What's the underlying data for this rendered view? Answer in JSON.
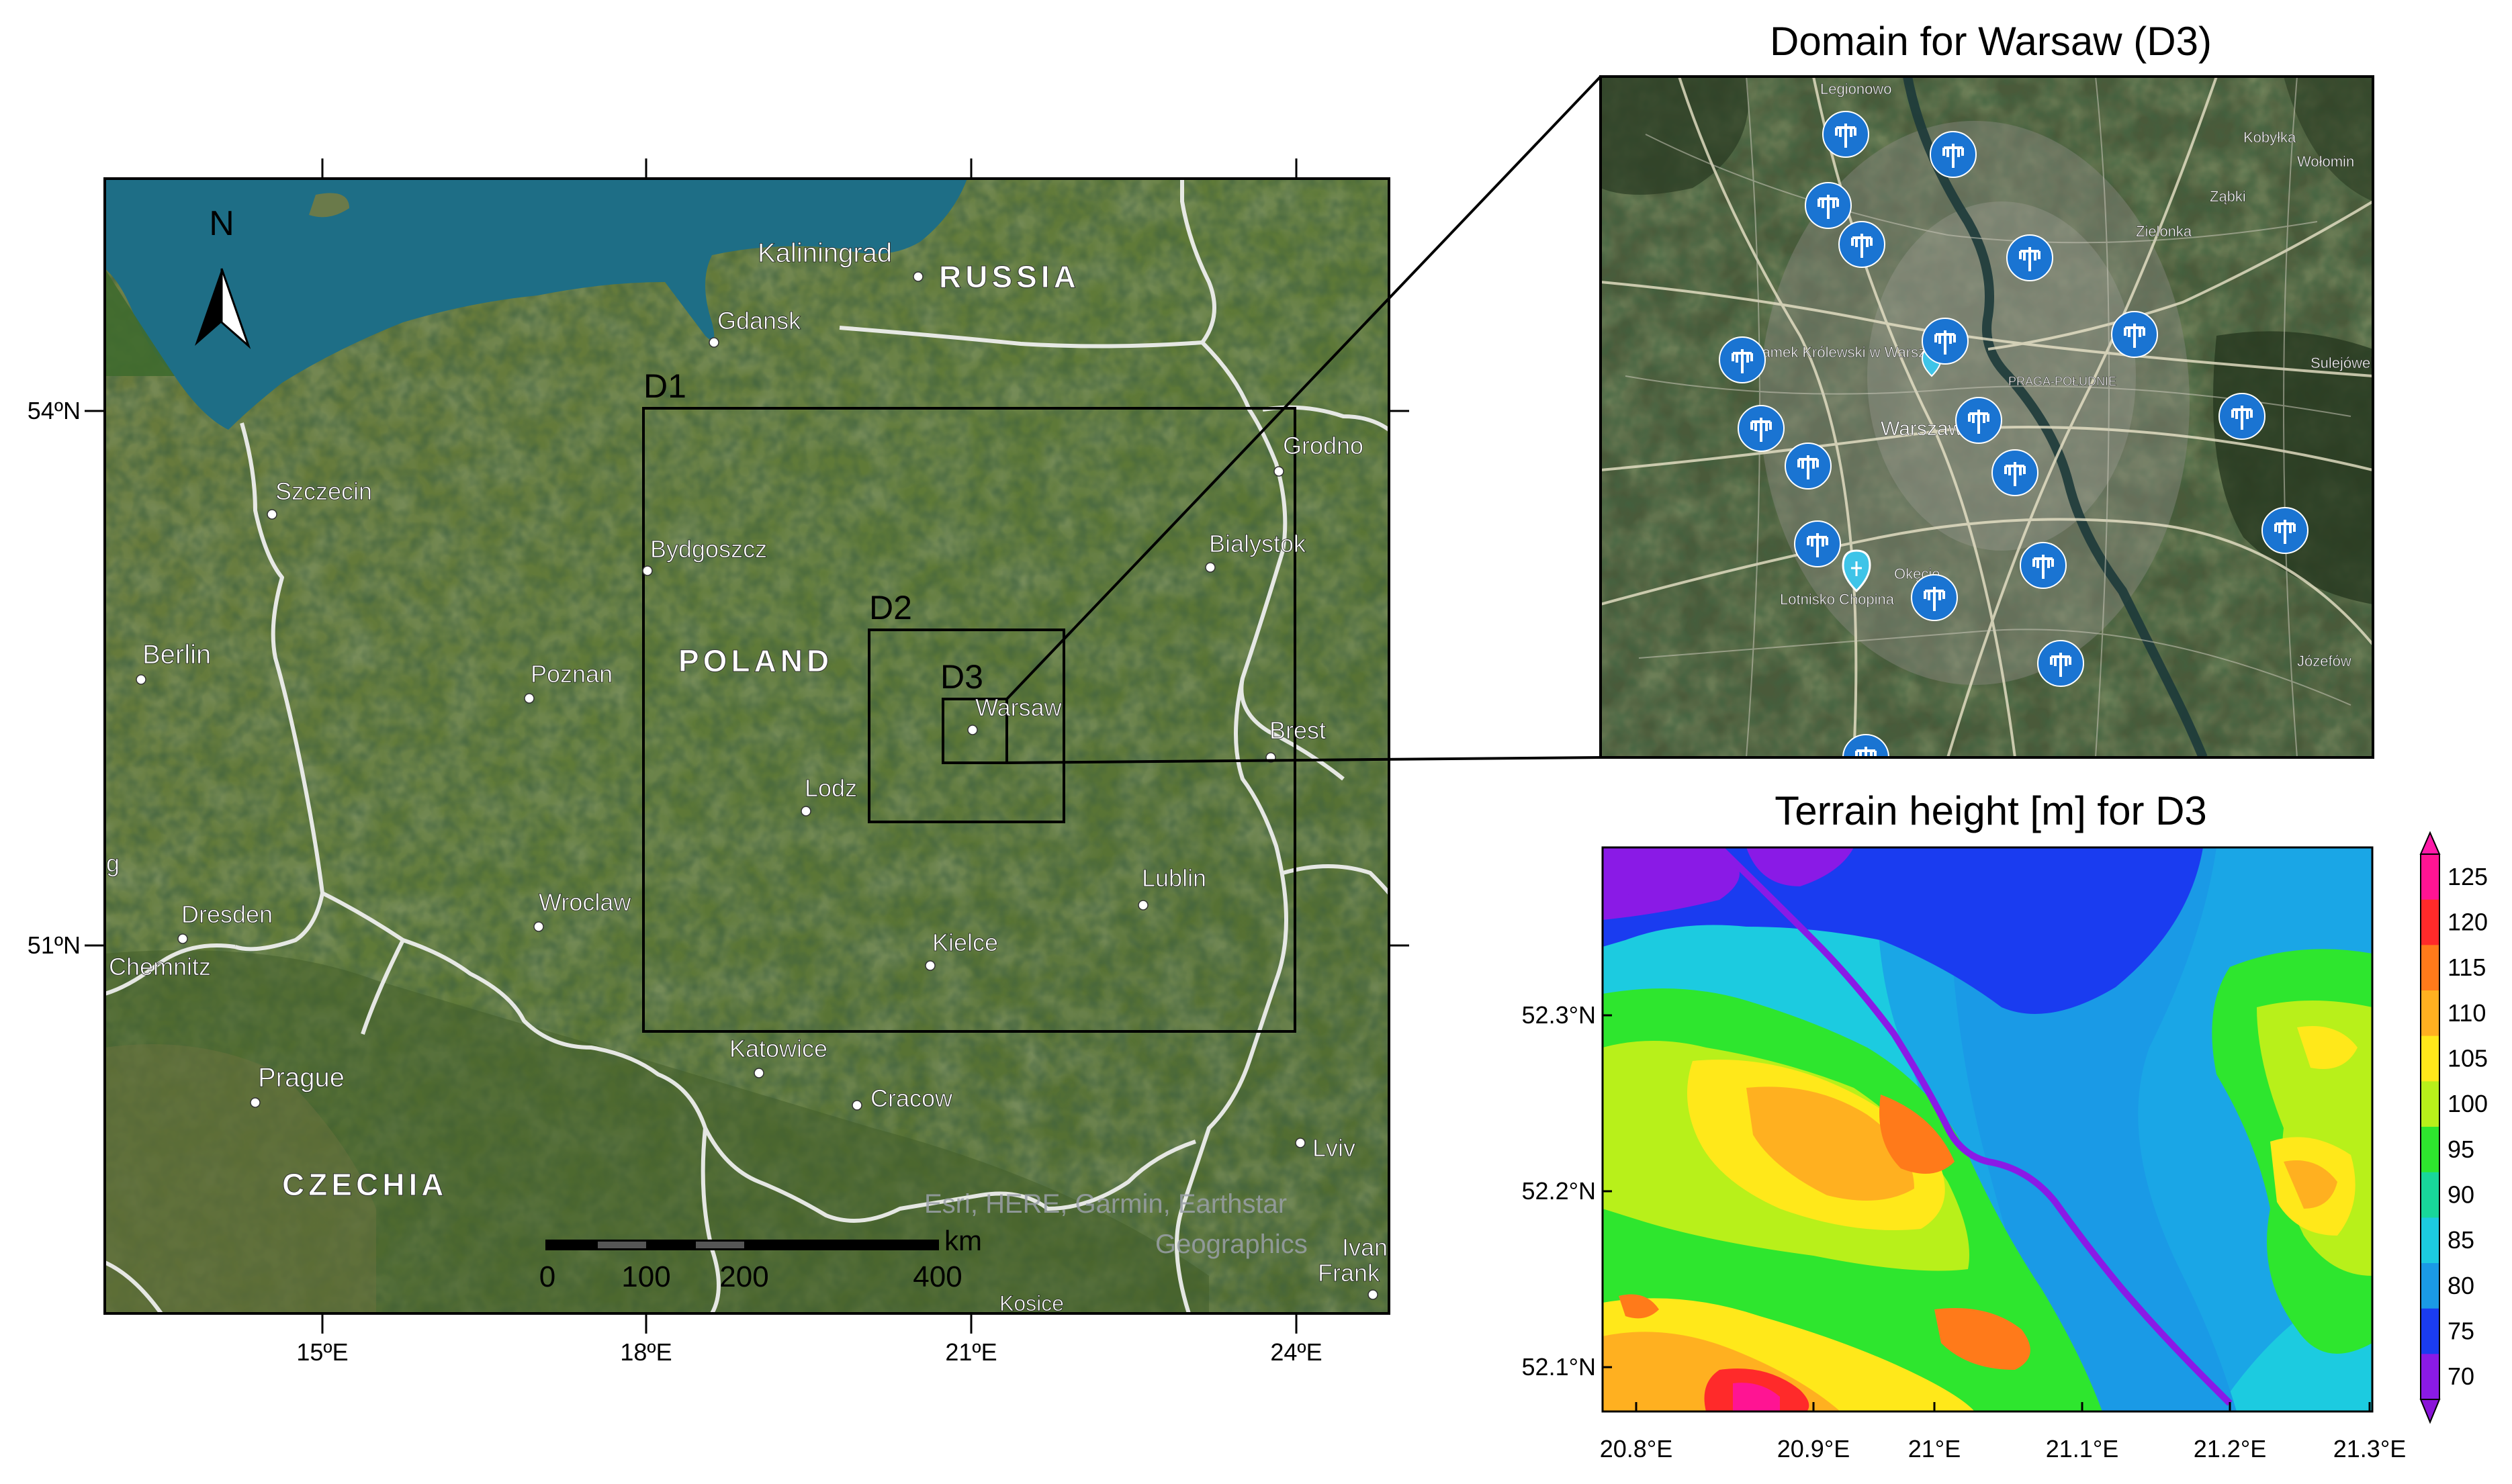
{
  "left_map": {
    "north_label": "N",
    "lat_labels": [
      "54ºN",
      "51ºN"
    ],
    "lon_labels": [
      "15ºE",
      "18ºE",
      "21ºE",
      "24ºE"
    ],
    "countries": [
      "RUSSIA",
      "POLAND",
      "CZECHIA"
    ],
    "cities": [
      "Kaliningrad",
      "Gdansk",
      "Szczecin",
      "Bydgoszcz",
      "Berlin",
      "Poznan",
      "Bialystok",
      "Grodno",
      "Brest",
      "Warsaw",
      "Lodz",
      "Lublin",
      "Wroclaw",
      "Dresden",
      "Chemnitz",
      "Kielce",
      "Katowice",
      "Cracow",
      "Prague",
      "Lviv",
      "Ivan",
      "Frank",
      "Kosice",
      "g"
    ],
    "domains": [
      "D1",
      "D2",
      "D3"
    ],
    "attribution": [
      "Esri, HERE, Garmin, Earthstar",
      "Geographics"
    ],
    "scale_bar": {
      "unit": "km",
      "ticks": [
        "0",
        "100",
        "200",
        "400"
      ]
    }
  },
  "top_right": {
    "title": "Domain for Warsaw (D3)",
    "labels": [
      "Zamek Królewski w Warszawie",
      "Warszawa",
      "PRAGA-POŁUDNIE",
      "Lotnisko Chopina",
      "Legionowo",
      "Zielonka",
      "Józefów",
      "Kobyłka",
      "Wołomin",
      "Sulejówek",
      "Ząbki",
      "Okęcie"
    ],
    "marker_icon": "weather-station-icon",
    "marker_count": 19
  },
  "bottom_right": {
    "title": "Terrain height [m] for D3",
    "lat_labels": [
      "52.3°N",
      "52.2°N",
      "52.1°N"
    ],
    "lon_labels": [
      "20.8°E",
      "20.9°E",
      "21°E",
      "21.1°E",
      "21.2°E",
      "21.3°E"
    ],
    "colorbar": {
      "levels": [
        "125",
        "120",
        "115",
        "110",
        "105",
        "100",
        "95",
        "90",
        "85",
        "80",
        "75",
        "70"
      ],
      "colors": [
        "#ff1493",
        "#ff2a2a",
        "#ff7a1a",
        "#ffb020",
        "#ffe81a",
        "#b8f01a",
        "#2ee62e",
        "#18d79a",
        "#1ccbe0",
        "#1a9ae6",
        "#1a3cf0",
        "#8a1ae6"
      ],
      "end_colors": {
        "top": "#ff1aa8",
        "bottom": "#8a14d8"
      }
    }
  }
}
